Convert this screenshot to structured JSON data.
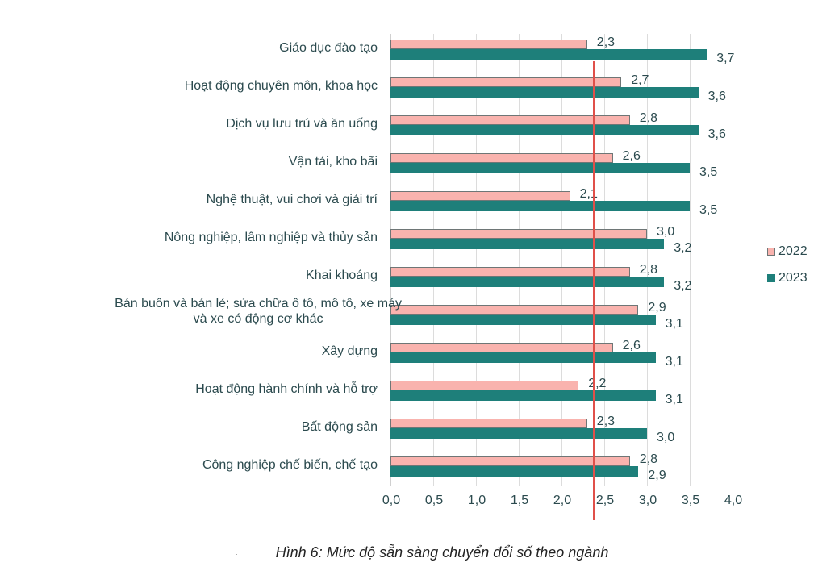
{
  "chart_data": {
    "type": "bar",
    "orientation": "horizontal",
    "title": "",
    "caption": "Hình 6: Mức độ sẵn sàng chuyển đổi số theo ngành",
    "xlabel": "",
    "ylabel": "",
    "xlim": [
      0,
      4.0
    ],
    "x_ticks": [
      "0,0",
      "0,5",
      "1,0",
      "1,5",
      "2,0",
      "2,5",
      "3,0",
      "3,5",
      "4,0"
    ],
    "grid": true,
    "legend_position": "right",
    "reference_line": {
      "value": 2.38,
      "color": "#e0504a",
      "orientation": "vertical"
    },
    "categories": [
      "Giáo dục đào tạo",
      "Hoạt động chuyên môn, khoa học",
      "Dịch vụ lưu trú và ăn uống",
      "Vận tải, kho bãi",
      "Nghệ thuật, vui chơi và giải trí",
      "Nông nghiệp, lâm nghiệp và thủy sản",
      "Khai khoáng",
      "Bán buôn và bán lẻ; sửa chữa ô tô, mô tô, xe máy và xe có động cơ khác",
      "Xây dựng",
      "Hoạt động hành chính và hỗ trợ",
      "Bất động sản",
      "Công nghiệp chế biến, chế tạo"
    ],
    "category_lines": [
      [
        "Giáo dục đào tạo"
      ],
      [
        "Hoạt động chuyên môn, khoa học"
      ],
      [
        "Dịch vụ lưu trú và ăn uống"
      ],
      [
        "Vận tải, kho bãi"
      ],
      [
        "Nghệ thuật, vui chơi và giải trí"
      ],
      [
        "Nông nghiệp, lâm nghiệp và thủy sản"
      ],
      [
        "Khai khoáng"
      ],
      [
        "Bán buôn và bán lẻ; sửa chữa ô tô, mô tô, xe máy",
        "và xe có động cơ khác"
      ],
      [
        "Xây dựng"
      ],
      [
        "Hoạt động hành chính và hỗ trợ"
      ],
      [
        "Bất động sản"
      ],
      [
        "Công nghiệp chế biến, chế tạo"
      ]
    ],
    "series": [
      {
        "name": "2022",
        "color": "#f9b3ae",
        "values": [
          2.3,
          2.7,
          2.8,
          2.6,
          2.1,
          3.0,
          2.8,
          2.9,
          2.6,
          2.2,
          2.3,
          2.8
        ],
        "labels": [
          "2,3",
          "2,7",
          "2,8",
          "2,6",
          "2,1",
          "3,0",
          "2,8",
          "2,9",
          "2,6",
          "2,2",
          "2,3",
          "2,8"
        ]
      },
      {
        "name": "2023",
        "color": "#1e7f7a",
        "values": [
          3.7,
          3.6,
          3.6,
          3.5,
          3.5,
          3.2,
          3.2,
          3.1,
          3.1,
          3.1,
          3.0,
          2.9
        ],
        "labels": [
          "3,7",
          "3,6",
          "3,6",
          "3,5",
          "3,5",
          "3,2",
          "3,2",
          "3,1",
          "3,1",
          "3,1",
          "3,0",
          "2,9"
        ]
      }
    ]
  },
  "legend": {
    "items": [
      {
        "label": "2022",
        "color": "#f9b3ae"
      },
      {
        "label": "2023",
        "color": "#1e7f7a"
      }
    ]
  }
}
